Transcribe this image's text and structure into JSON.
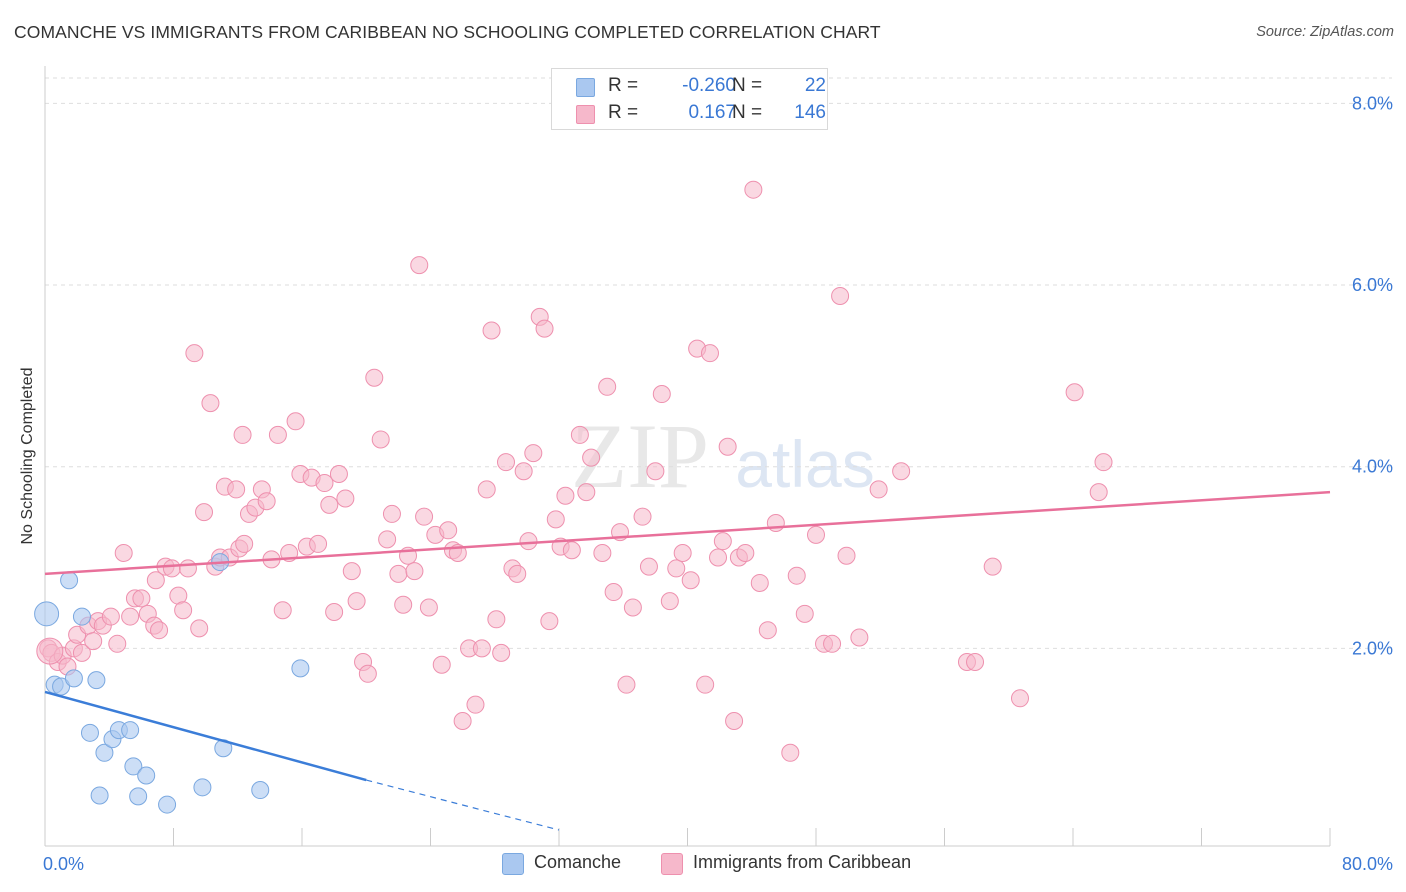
{
  "header": {
    "title": "COMANCHE VS IMMIGRANTS FROM CARIBBEAN NO SCHOOLING COMPLETED CORRELATION CHART",
    "source": "Source: ZipAtlas.com"
  },
  "watermark": {
    "zip": "ZIP",
    "atlas": "atlas"
  },
  "legend": {
    "rows": [
      {
        "r_label": "R =",
        "r_value": "-0.260",
        "n_label": "N =",
        "n_value": "22",
        "color": "#aac8f0"
      },
      {
        "r_label": "R =",
        "r_value": "0.167",
        "n_label": "N =",
        "n_value": "146",
        "color": "#f6b8cb"
      }
    ]
  },
  "bottom_legend": [
    {
      "label": "Comanche",
      "color": "#aac8f0"
    },
    {
      "label": "Immigrants from Caribbean",
      "color": "#f6b8cb"
    }
  ],
  "chart_data": {
    "type": "scatter",
    "title": "COMANCHE VS IMMIGRANTS FROM CARIBBEAN NO SCHOOLING COMPLETED CORRELATION CHART",
    "xlabel": "",
    "ylabel": "No Schooling Completed",
    "xlim": [
      0,
      80
    ],
    "ylim": [
      0,
      8.5
    ],
    "x_tick_labels": [
      "0.0%",
      "80.0%"
    ],
    "y_ticks": [
      2,
      4,
      6,
      8
    ],
    "y_tick_labels": [
      "2.0%",
      "4.0%",
      "6.0%",
      "8.0%"
    ],
    "grid": "horizontal dashed",
    "legend_position": "top-center",
    "series": [
      {
        "name": "Comanche",
        "color": "#3b7dd8",
        "fill": "#aac8f0",
        "trend": {
          "x": [
            0,
            20
          ],
          "y": [
            1.52,
            0.55
          ],
          "dashed_to": [
            32,
            0.0
          ]
        },
        "points": [
          [
            0.1,
            2.38
          ],
          [
            1.5,
            2.75
          ],
          [
            2.3,
            2.35
          ],
          [
            0.6,
            1.6
          ],
          [
            1.0,
            1.58
          ],
          [
            1.8,
            1.67
          ],
          [
            3.2,
            1.65
          ],
          [
            2.8,
            1.07
          ],
          [
            3.7,
            0.85
          ],
          [
            4.2,
            1.0
          ],
          [
            4.6,
            1.1
          ],
          [
            5.3,
            1.1
          ],
          [
            5.5,
            0.7
          ],
          [
            6.3,
            0.6
          ],
          [
            3.4,
            0.38
          ],
          [
            5.8,
            0.37
          ],
          [
            7.6,
            0.28
          ],
          [
            9.8,
            0.47
          ],
          [
            10.9,
            2.95
          ],
          [
            11.1,
            0.9
          ],
          [
            13.4,
            0.44
          ],
          [
            15.9,
            1.78
          ]
        ]
      },
      {
        "name": "Immigrants from Caribbean",
        "color": "#e8709a",
        "fill": "#f6b8cb",
        "trend": {
          "x": [
            0,
            80
          ],
          "y": [
            2.82,
            3.72
          ]
        },
        "points": [
          [
            0.2,
            2.0
          ],
          [
            0.4,
            1.95
          ],
          [
            0.8,
            1.85
          ],
          [
            1.1,
            1.92
          ],
          [
            1.4,
            1.8
          ],
          [
            1.8,
            2.0
          ],
          [
            2.0,
            2.15
          ],
          [
            2.3,
            1.95
          ],
          [
            2.7,
            2.25
          ],
          [
            3.0,
            2.08
          ],
          [
            3.3,
            2.3
          ],
          [
            3.6,
            2.25
          ],
          [
            4.1,
            2.35
          ],
          [
            4.5,
            2.05
          ],
          [
            4.9,
            3.05
          ],
          [
            5.3,
            2.35
          ],
          [
            5.6,
            2.55
          ],
          [
            6.0,
            2.55
          ],
          [
            6.4,
            2.38
          ],
          [
            6.8,
            2.25
          ],
          [
            7.1,
            2.2
          ],
          [
            6.9,
            2.75
          ],
          [
            7.5,
            2.9
          ],
          [
            7.9,
            2.88
          ],
          [
            8.3,
            2.58
          ],
          [
            8.6,
            2.42
          ],
          [
            8.9,
            2.88
          ],
          [
            9.3,
            5.25
          ],
          [
            9.6,
            2.22
          ],
          [
            9.9,
            3.5
          ],
          [
            10.3,
            4.7
          ],
          [
            10.6,
            2.9
          ],
          [
            10.9,
            3.0
          ],
          [
            11.2,
            3.78
          ],
          [
            11.5,
            3.0
          ],
          [
            11.9,
            3.75
          ],
          [
            12.1,
            3.1
          ],
          [
            12.4,
            3.15
          ],
          [
            12.7,
            3.48
          ],
          [
            13.1,
            3.55
          ],
          [
            13.5,
            3.75
          ],
          [
            13.8,
            3.62
          ],
          [
            12.3,
            4.35
          ],
          [
            14.1,
            2.98
          ],
          [
            14.5,
            4.35
          ],
          [
            14.8,
            2.42
          ],
          [
            15.2,
            3.05
          ],
          [
            15.6,
            4.5
          ],
          [
            15.9,
            3.92
          ],
          [
            16.3,
            3.12
          ],
          [
            16.6,
            3.88
          ],
          [
            17.0,
            3.15
          ],
          [
            17.4,
            3.82
          ],
          [
            17.7,
            3.58
          ],
          [
            18.0,
            2.4
          ],
          [
            18.3,
            3.92
          ],
          [
            18.7,
            3.65
          ],
          [
            19.1,
            2.85
          ],
          [
            19.4,
            2.52
          ],
          [
            19.8,
            1.85
          ],
          [
            20.1,
            1.72
          ],
          [
            20.5,
            4.98
          ],
          [
            20.9,
            4.3
          ],
          [
            21.3,
            3.2
          ],
          [
            21.6,
            3.48
          ],
          [
            22.0,
            2.82
          ],
          [
            22.3,
            2.48
          ],
          [
            22.6,
            3.02
          ],
          [
            23.0,
            2.85
          ],
          [
            23.3,
            6.22
          ],
          [
            23.6,
            3.45
          ],
          [
            23.9,
            2.45
          ],
          [
            24.3,
            3.25
          ],
          [
            24.7,
            1.82
          ],
          [
            25.1,
            3.3
          ],
          [
            25.4,
            3.08
          ],
          [
            25.7,
            3.05
          ],
          [
            26.0,
            1.2
          ],
          [
            26.4,
            2.0
          ],
          [
            26.8,
            1.38
          ],
          [
            27.2,
            2.0
          ],
          [
            27.5,
            3.75
          ],
          [
            27.8,
            5.5
          ],
          [
            28.1,
            2.32
          ],
          [
            28.4,
            1.95
          ],
          [
            28.7,
            4.05
          ],
          [
            29.1,
            2.88
          ],
          [
            29.4,
            2.82
          ],
          [
            29.8,
            3.95
          ],
          [
            30.1,
            3.18
          ],
          [
            30.4,
            4.15
          ],
          [
            30.8,
            5.65
          ],
          [
            31.1,
            5.52
          ],
          [
            31.4,
            2.3
          ],
          [
            31.8,
            3.42
          ],
          [
            32.1,
            3.12
          ],
          [
            32.4,
            3.68
          ],
          [
            32.8,
            3.08
          ],
          [
            33.3,
            4.35
          ],
          [
            33.7,
            3.72
          ],
          [
            34.0,
            4.1
          ],
          [
            34.7,
            3.05
          ],
          [
            35.0,
            4.88
          ],
          [
            35.4,
            2.62
          ],
          [
            35.8,
            3.28
          ],
          [
            36.2,
            1.6
          ],
          [
            36.6,
            2.45
          ],
          [
            37.2,
            3.45
          ],
          [
            37.6,
            2.9
          ],
          [
            38.0,
            3.95
          ],
          [
            38.4,
            4.8
          ],
          [
            38.9,
            2.52
          ],
          [
            39.3,
            2.88
          ],
          [
            39.7,
            3.05
          ],
          [
            40.2,
            2.75
          ],
          [
            40.6,
            5.3
          ],
          [
            41.1,
            1.6
          ],
          [
            41.4,
            5.25
          ],
          [
            41.9,
            3.0
          ],
          [
            42.2,
            3.18
          ],
          [
            42.5,
            4.22
          ],
          [
            42.9,
            1.2
          ],
          [
            43.2,
            3.0
          ],
          [
            43.6,
            3.05
          ],
          [
            44.1,
            7.05
          ],
          [
            44.5,
            2.72
          ],
          [
            45.0,
            2.2
          ],
          [
            45.5,
            3.38
          ],
          [
            46.4,
            0.85
          ],
          [
            46.8,
            2.8
          ],
          [
            47.3,
            2.38
          ],
          [
            48.0,
            3.25
          ],
          [
            48.5,
            2.05
          ],
          [
            49.0,
            2.05
          ],
          [
            49.5,
            5.88
          ],
          [
            49.9,
            3.02
          ],
          [
            50.7,
            2.12
          ],
          [
            51.9,
            3.75
          ],
          [
            53.3,
            3.95
          ],
          [
            57.4,
            1.85
          ],
          [
            57.9,
            1.85
          ],
          [
            59.0,
            2.9
          ],
          [
            60.7,
            1.45
          ],
          [
            64.1,
            4.82
          ],
          [
            65.6,
            3.72
          ],
          [
            65.9,
            4.05
          ]
        ]
      }
    ]
  }
}
